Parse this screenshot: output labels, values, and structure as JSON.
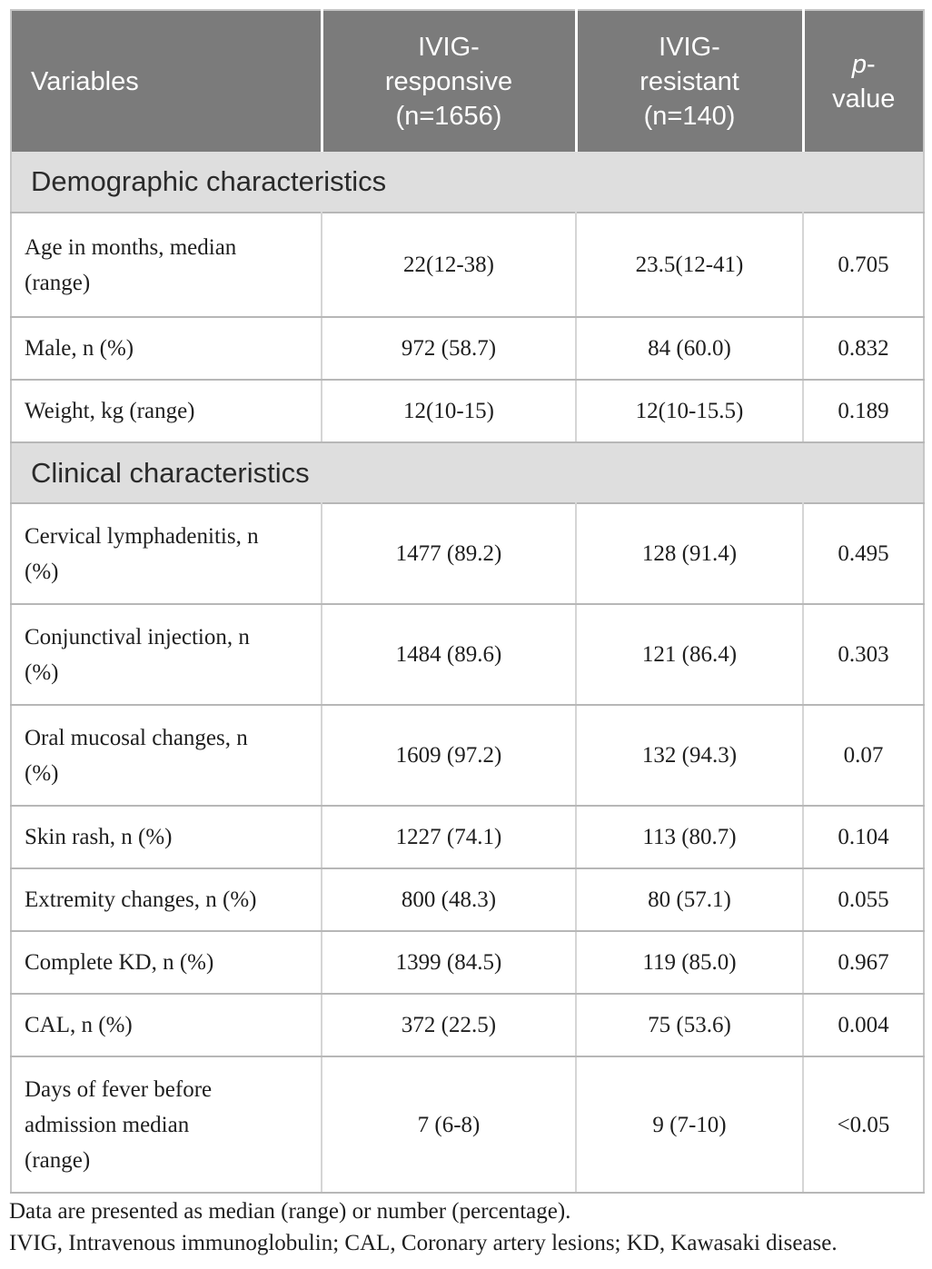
{
  "colors": {
    "header_bg": "#7b7b7b",
    "header_text": "#ffffff",
    "section_bg": "#dedede",
    "body_text": "#1e1e1e",
    "border_horizontal": "#b7b7b7",
    "border_vertical": "#d5d5d5"
  },
  "table": {
    "header": {
      "variables": "Variables",
      "responsive": "IVIG-\nresponsive\n(n=1656)",
      "resistant": "IVIG-\nresistant\n(n=140)",
      "p_italic": "p",
      "p_dash": "-",
      "p_line2": "value"
    },
    "sections": [
      {
        "title": "Demographic characteristics",
        "rows": [
          {
            "label": "Age in months, median\n(range)",
            "responsive": "22(12-38)",
            "resistant": "23.5(12-41)",
            "p": "0.705"
          },
          {
            "label": "Male, n (%)",
            "responsive": "972 (58.7)",
            "resistant": "84 (60.0)",
            "p": "0.832"
          },
          {
            "label": "Weight, kg (range)",
            "responsive": "12(10-15)",
            "resistant": "12(10-15.5)",
            "p": "0.189"
          }
        ]
      },
      {
        "title": "Clinical characteristics",
        "rows": [
          {
            "label": "Cervical lymphadenitis, n\n(%)",
            "responsive": "1477 (89.2)",
            "resistant": "128 (91.4)",
            "p": "0.495"
          },
          {
            "label": "Conjunctival injection, n\n(%)",
            "responsive": "1484 (89.6)",
            "resistant": "121 (86.4)",
            "p": "0.303"
          },
          {
            "label": "Oral mucosal changes, n\n(%)",
            "responsive": "1609 (97.2)",
            "resistant": "132 (94.3)",
            "p": "0.07"
          },
          {
            "label": "Skin rash, n (%)",
            "responsive": "1227 (74.1)",
            "resistant": "113 (80.7)",
            "p": "0.104"
          },
          {
            "label": "Extremity changes, n (%)",
            "responsive": "800 (48.3)",
            "resistant": "80 (57.1)",
            "p": "0.055"
          },
          {
            "label": "Complete KD, n (%)",
            "responsive": "1399 (84.5)",
            "resistant": "119 (85.0)",
            "p": "0.967"
          },
          {
            "label": "CAL, n (%)",
            "responsive": "372 (22.5)",
            "resistant": "75 (53.6)",
            "p": "0.004"
          },
          {
            "label": "Days of fever before\nadmission median\n(range)",
            "responsive": "7 (6-8)",
            "resistant": "9 (7-10)",
            "p": "<0.05"
          }
        ]
      }
    ],
    "footnotes": [
      "Data are presented as median (range) or number (percentage).",
      "IVIG, Intravenous immunoglobulin; CAL, Coronary artery lesions; KD, Kawasaki disease."
    ]
  }
}
